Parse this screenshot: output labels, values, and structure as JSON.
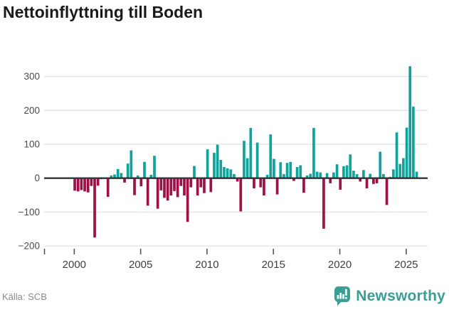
{
  "title": "Nettoinflyttning till Boden",
  "source": "Källa: SCB",
  "logo": {
    "text": "Newsworthy",
    "icon": "newsworthy-bubble-chart-icon"
  },
  "colors": {
    "positive": "#11a29c",
    "negative": "#9b1148",
    "grid": "#e4e4e4",
    "zero_line": "#333333",
    "axis_text": "#4a4a4a",
    "tick_mark": "#555555",
    "title_text": "#1a1a1a",
    "source_text": "#8a8a8a",
    "logo_teal": "#3a9e97"
  },
  "chart_data": {
    "type": "bar",
    "title": "Nettoinflyttning till Boden",
    "frequency": "quarterly",
    "x_start": "2000 Q1",
    "x_end": "2025 Q4",
    "values": [
      -37,
      -39,
      -35,
      -39,
      -42,
      -23,
      -175,
      -22,
      -3,
      -2,
      -55,
      8,
      11,
      27,
      15,
      -13,
      43,
      82,
      -50,
      8,
      -24,
      48,
      -81,
      10,
      66,
      -90,
      -36,
      -58,
      -66,
      -51,
      -38,
      -56,
      -23,
      -51,
      -129,
      -27,
      36,
      -51,
      -27,
      -44,
      85,
      -41,
      75,
      99,
      54,
      33,
      29,
      26,
      12,
      -10,
      -98,
      110,
      59,
      148,
      -30,
      105,
      -27,
      -51,
      10,
      129,
      57,
      -48,
      47,
      12,
      45,
      48,
      -8,
      33,
      38,
      -43,
      8,
      13,
      148,
      19,
      17,
      -149,
      15,
      -15,
      17,
      41,
      -34,
      35,
      38,
      70,
      22,
      12,
      -10,
      24,
      -30,
      13,
      -17,
      -15,
      78,
      12,
      -79,
      4,
      26,
      135,
      42,
      59,
      149,
      330,
      211,
      19
    ],
    "x_tick_labels": [
      "2000",
      "2005",
      "2010",
      "2015",
      "2020",
      "2025"
    ],
    "x_ticks_every_n_bars": 20,
    "y_ticks": [
      300,
      200,
      100,
      0,
      -100,
      -200
    ],
    "y_tick_labels": [
      "300",
      "200",
      "100",
      "0",
      "−100",
      "−200"
    ],
    "ylim": [
      -200,
      340
    ],
    "grid": true,
    "legend": false,
    "zero_line": true
  }
}
